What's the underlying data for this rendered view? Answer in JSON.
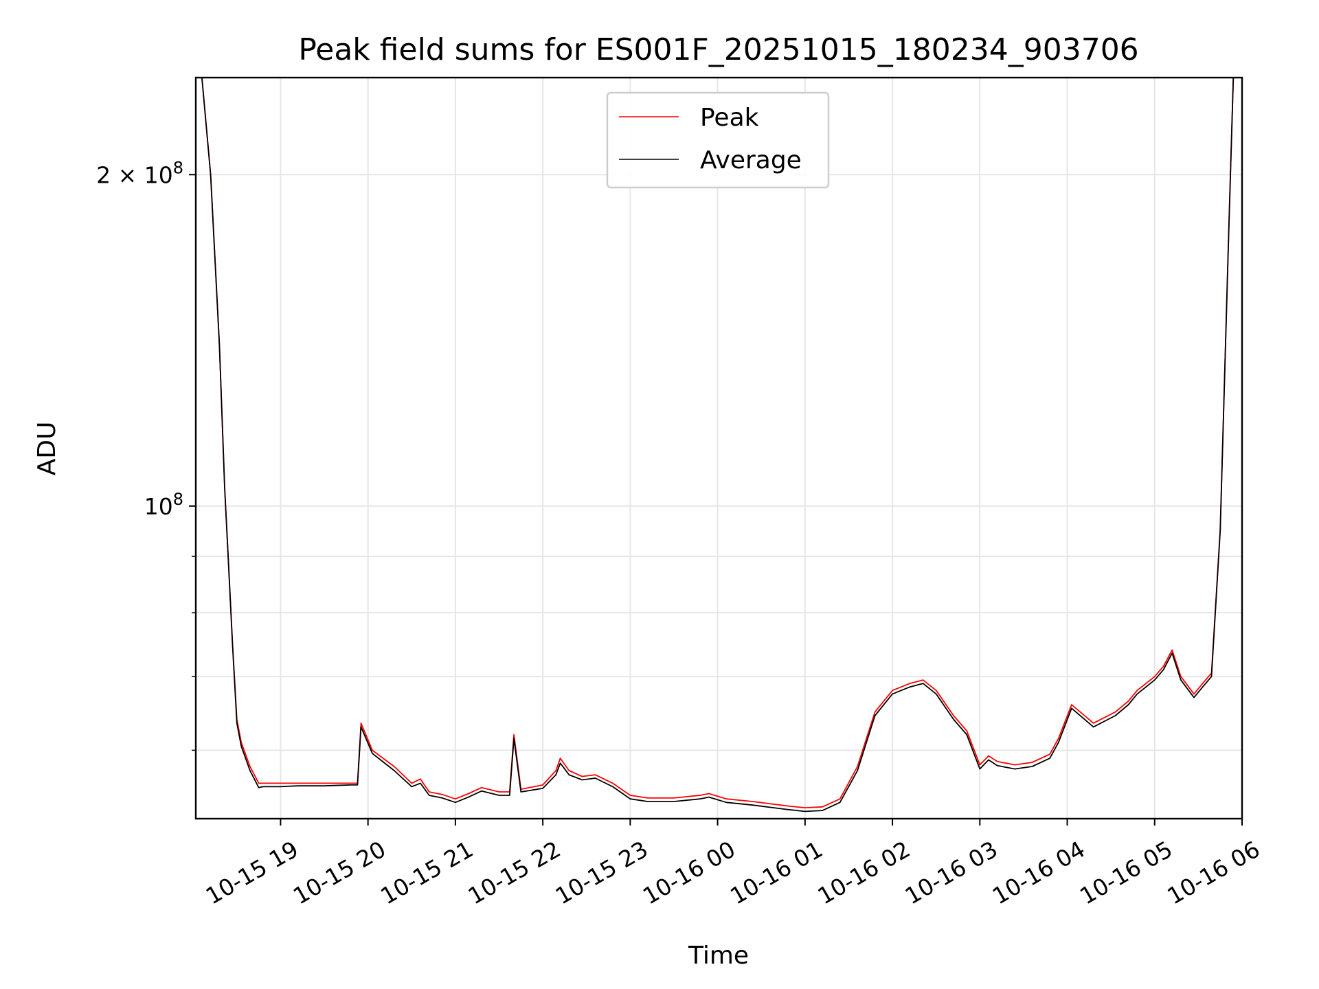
{
  "chart_data": {
    "type": "line",
    "title": "Peak field sums for ES001F_20251015_180234_903706",
    "xlabel": "Time",
    "ylabel": "ADU",
    "y_scale": "log",
    "ylim": [
      52000000,
      245000000
    ],
    "xlim_hours": [
      18.03,
      30.0
    ],
    "grid": true,
    "legend_position": "upper center",
    "x_ticks": [
      {
        "hour": 19,
        "label": "10-15 19"
      },
      {
        "hour": 20,
        "label": "10-15 20"
      },
      {
        "hour": 21,
        "label": "10-15 21"
      },
      {
        "hour": 22,
        "label": "10-15 22"
      },
      {
        "hour": 23,
        "label": "10-15 23"
      },
      {
        "hour": 24,
        "label": "10-16 00"
      },
      {
        "hour": 25,
        "label": "10-16 01"
      },
      {
        "hour": 26,
        "label": "10-16 02"
      },
      {
        "hour": 27,
        "label": "10-16 03"
      },
      {
        "hour": 28,
        "label": "10-16 04"
      },
      {
        "hour": 29,
        "label": "10-16 05"
      },
      {
        "hour": 30,
        "label": "10-16 06"
      }
    ],
    "y_major_ticks": [
      {
        "value": 100000000,
        "base": "10",
        "exp": "8"
      },
      {
        "value": 200000000,
        "base": "2 × 10",
        "exp": "8"
      }
    ],
    "y_minor_ticks": [
      60000000,
      70000000,
      80000000,
      90000000
    ],
    "series": [
      {
        "name": "Peak",
        "color": "#ff0000",
        "x_hours": [
          18.1,
          18.2,
          18.3,
          18.36,
          18.4,
          18.45,
          18.5,
          18.55,
          18.65,
          18.75,
          18.8,
          18.9,
          19.0,
          19.2,
          19.5,
          19.8,
          19.88,
          19.92,
          20.05,
          20.3,
          20.5,
          20.6,
          20.7,
          20.85,
          21.0,
          21.15,
          21.3,
          21.5,
          21.62,
          21.67,
          21.75,
          22.0,
          22.15,
          22.2,
          22.3,
          22.45,
          22.6,
          22.8,
          23.0,
          23.2,
          23.5,
          23.8,
          23.9,
          24.1,
          24.4,
          24.8,
          25.0,
          25.2,
          25.4,
          25.6,
          25.8,
          26.0,
          26.2,
          26.35,
          26.5,
          26.7,
          26.85,
          27.0,
          27.1,
          27.2,
          27.4,
          27.6,
          27.8,
          27.9,
          28.05,
          28.3,
          28.55,
          28.7,
          28.8,
          29.0,
          29.1,
          29.2,
          29.3,
          29.45,
          29.55,
          29.65,
          29.75,
          29.85,
          29.9
        ],
        "values": [
          245000000,
          200000000,
          140000000,
          104000000,
          90000000,
          75000000,
          64000000,
          61000000,
          58000000,
          56000000,
          56000000,
          56000000,
          56000000,
          56000000,
          56000000,
          56000000,
          56000000,
          63500000,
          60000000,
          58000000,
          56000000,
          56500000,
          55000000,
          54700000,
          54200000,
          54800000,
          55500000,
          55000000,
          55000000,
          62000000,
          55300000,
          55800000,
          57500000,
          59000000,
          57500000,
          56800000,
          57000000,
          56000000,
          54600000,
          54300000,
          54300000,
          54600000,
          54800000,
          54200000,
          53900000,
          53400000,
          53200000,
          53300000,
          54200000,
          58000000,
          65000000,
          68000000,
          69000000,
          69500000,
          68000000,
          64500000,
          62500000,
          58200000,
          59300000,
          58600000,
          58200000,
          58500000,
          59500000,
          61500000,
          66000000,
          63500000,
          65000000,
          66500000,
          68000000,
          70000000,
          71500000,
          74000000,
          70000000,
          67500000,
          69000000,
          70500000,
          95000000,
          180000000,
          245000000
        ]
      },
      {
        "name": "Average",
        "color": "#000000",
        "x_hours": [
          18.1,
          18.2,
          18.3,
          18.36,
          18.4,
          18.45,
          18.5,
          18.55,
          18.65,
          18.75,
          18.8,
          18.9,
          19.0,
          19.2,
          19.5,
          19.8,
          19.88,
          19.92,
          20.05,
          20.3,
          20.5,
          20.6,
          20.7,
          20.85,
          21.0,
          21.15,
          21.3,
          21.5,
          21.62,
          21.67,
          21.75,
          22.0,
          22.15,
          22.2,
          22.3,
          22.45,
          22.6,
          22.8,
          23.0,
          23.2,
          23.5,
          23.8,
          23.9,
          24.1,
          24.4,
          24.8,
          25.0,
          25.2,
          25.4,
          25.6,
          25.8,
          26.0,
          26.2,
          26.35,
          26.5,
          26.7,
          26.85,
          27.0,
          27.1,
          27.2,
          27.4,
          27.6,
          27.8,
          27.9,
          28.05,
          28.3,
          28.55,
          28.7,
          28.8,
          29.0,
          29.1,
          29.2,
          29.3,
          29.45,
          29.55,
          29.65,
          29.75,
          29.85,
          29.9
        ],
        "values": [
          245000000,
          200000000,
          140000000,
          104000000,
          90000000,
          75000000,
          63500000,
          60500000,
          57500000,
          55500000,
          55600000,
          55600000,
          55600000,
          55700000,
          55700000,
          55800000,
          55800000,
          63000000,
          59600000,
          57500000,
          55600000,
          56000000,
          54600000,
          54300000,
          53800000,
          54400000,
          55100000,
          54600000,
          54600000,
          61500000,
          55000000,
          55400000,
          57000000,
          58400000,
          57000000,
          56400000,
          56600000,
          55600000,
          54200000,
          53900000,
          53900000,
          54200000,
          54400000,
          53800000,
          53500000,
          53000000,
          52800000,
          52900000,
          53800000,
          57500000,
          64500000,
          67500000,
          68500000,
          69000000,
          67500000,
          64000000,
          62000000,
          57700000,
          58800000,
          58100000,
          57700000,
          58000000,
          59000000,
          61000000,
          65500000,
          63000000,
          64500000,
          66000000,
          67500000,
          69500000,
          71000000,
          73500000,
          69500000,
          67000000,
          68500000,
          70000000,
          95000000,
          180000000,
          245000000
        ]
      }
    ]
  }
}
